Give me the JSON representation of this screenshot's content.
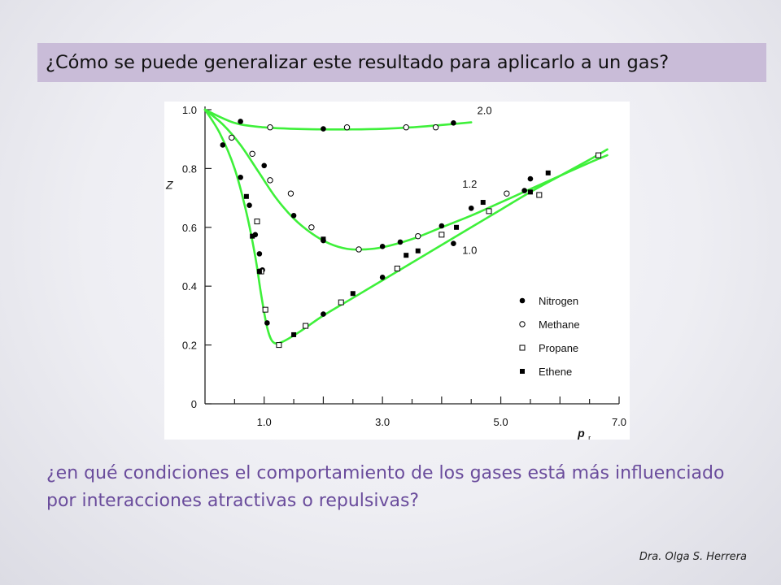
{
  "slide": {
    "title": "¿Cómo se puede generalizar este resultado para aplicarlo a un gas?",
    "question": "¿en qué condiciones el comportamiento de los gases está más influenciado por interacciones atractivas o repulsivas?",
    "author": "Dra. Olga S. Herrera"
  },
  "chart_data": {
    "type": "scatter",
    "title": "",
    "xlabel": "p",
    "xlabel_subscript": "r",
    "ylabel": "Z",
    "xlim": [
      0,
      7.0
    ],
    "ylim": [
      0,
      1.0
    ],
    "x_ticks": [
      "1.0",
      "3.0",
      "5.0",
      "7.0"
    ],
    "x_tick_values": [
      1.0,
      3.0,
      5.0,
      7.0
    ],
    "y_ticks": [
      "0",
      "0.2",
      "0.4",
      "0.6",
      "0.8",
      "1.0"
    ],
    "y_tick_values": [
      0,
      0.2,
      0.4,
      0.6,
      0.8,
      1.0
    ],
    "grid": false,
    "legend_position": "bottom-right",
    "curve_color": "#3ef03a",
    "curves": [
      {
        "name": "2.0",
        "x": [
          0,
          0.5,
          1.0,
          1.5,
          2.0,
          2.5,
          3.0,
          3.5,
          4.0,
          4.5
        ],
        "y": [
          1.0,
          0.955,
          0.94,
          0.935,
          0.933,
          0.933,
          0.935,
          0.94,
          0.948,
          0.957
        ]
      },
      {
        "name": "1.2",
        "x": [
          0,
          0.3,
          0.6,
          0.9,
          1.2,
          1.5,
          1.8,
          2.1,
          2.4,
          2.7,
          3.0,
          3.5,
          4.0,
          4.5,
          5.0,
          5.5,
          6.0,
          6.5,
          6.8
        ],
        "y": [
          1.0,
          0.95,
          0.88,
          0.79,
          0.7,
          0.63,
          0.58,
          0.545,
          0.527,
          0.525,
          0.532,
          0.56,
          0.6,
          0.64,
          0.685,
          0.73,
          0.775,
          0.82,
          0.845
        ]
      },
      {
        "name": "1.0",
        "x": [
          0,
          0.25,
          0.5,
          0.7,
          0.85,
          0.95,
          1.05,
          1.15,
          1.3,
          1.6,
          2.0,
          2.5,
          3.0,
          3.5,
          4.0,
          4.5,
          5.0,
          5.5,
          6.0,
          6.5,
          6.8
        ],
        "y": [
          1.0,
          0.92,
          0.8,
          0.65,
          0.5,
          0.37,
          0.26,
          0.21,
          0.21,
          0.245,
          0.3,
          0.36,
          0.42,
          0.48,
          0.54,
          0.6,
          0.66,
          0.72,
          0.775,
          0.83,
          0.865
        ]
      }
    ],
    "series": [
      {
        "name": "Nitrogen",
        "marker": "filled-circle",
        "points": [
          [
            0.6,
            0.96
          ],
          [
            2.0,
            0.935
          ],
          [
            4.2,
            0.955
          ],
          [
            1.0,
            0.81
          ],
          [
            1.5,
            0.64
          ],
          [
            2.0,
            0.555
          ],
          [
            3.0,
            0.535
          ],
          [
            3.3,
            0.55
          ],
          [
            4.2,
            0.545
          ],
          [
            4.5,
            0.665
          ],
          [
            5.4,
            0.725
          ],
          [
            0.3,
            0.88
          ],
          [
            0.6,
            0.77
          ],
          [
            0.75,
            0.675
          ],
          [
            0.85,
            0.575
          ],
          [
            0.92,
            0.51
          ],
          [
            0.97,
            0.455
          ],
          [
            1.05,
            0.275
          ],
          [
            2.0,
            0.305
          ],
          [
            3.0,
            0.43
          ],
          [
            4.0,
            0.605
          ],
          [
            5.5,
            0.765
          ]
        ]
      },
      {
        "name": "Methane",
        "marker": "open-circle",
        "points": [
          [
            1.1,
            0.94
          ],
          [
            2.4,
            0.94
          ],
          [
            3.4,
            0.94
          ],
          [
            3.9,
            0.94
          ],
          [
            0.45,
            0.905
          ],
          [
            0.8,
            0.85
          ],
          [
            1.1,
            0.76
          ],
          [
            1.45,
            0.715
          ],
          [
            1.8,
            0.6
          ],
          [
            2.6,
            0.525
          ],
          [
            3.6,
            0.57
          ],
          [
            5.1,
            0.715
          ]
        ]
      },
      {
        "name": "Propane",
        "marker": "open-square",
        "points": [
          [
            0.88,
            0.62
          ],
          [
            0.95,
            0.45
          ],
          [
            1.02,
            0.32
          ],
          [
            1.25,
            0.2
          ],
          [
            1.7,
            0.265
          ],
          [
            2.3,
            0.345
          ],
          [
            3.25,
            0.46
          ],
          [
            4.0,
            0.575
          ],
          [
            4.8,
            0.655
          ],
          [
            5.65,
            0.71
          ],
          [
            6.65,
            0.845
          ]
        ]
      },
      {
        "name": "Ethene",
        "marker": "filled-square",
        "points": [
          [
            0.7,
            0.705
          ],
          [
            0.8,
            0.57
          ],
          [
            0.92,
            0.45
          ],
          [
            1.5,
            0.235
          ],
          [
            2.5,
            0.375
          ],
          [
            3.4,
            0.505
          ],
          [
            3.6,
            0.52
          ],
          [
            4.25,
            0.6
          ],
          [
            2.0,
            0.56
          ],
          [
            4.7,
            0.685
          ],
          [
            5.5,
            0.72
          ],
          [
            5.8,
            0.785
          ]
        ]
      }
    ]
  }
}
